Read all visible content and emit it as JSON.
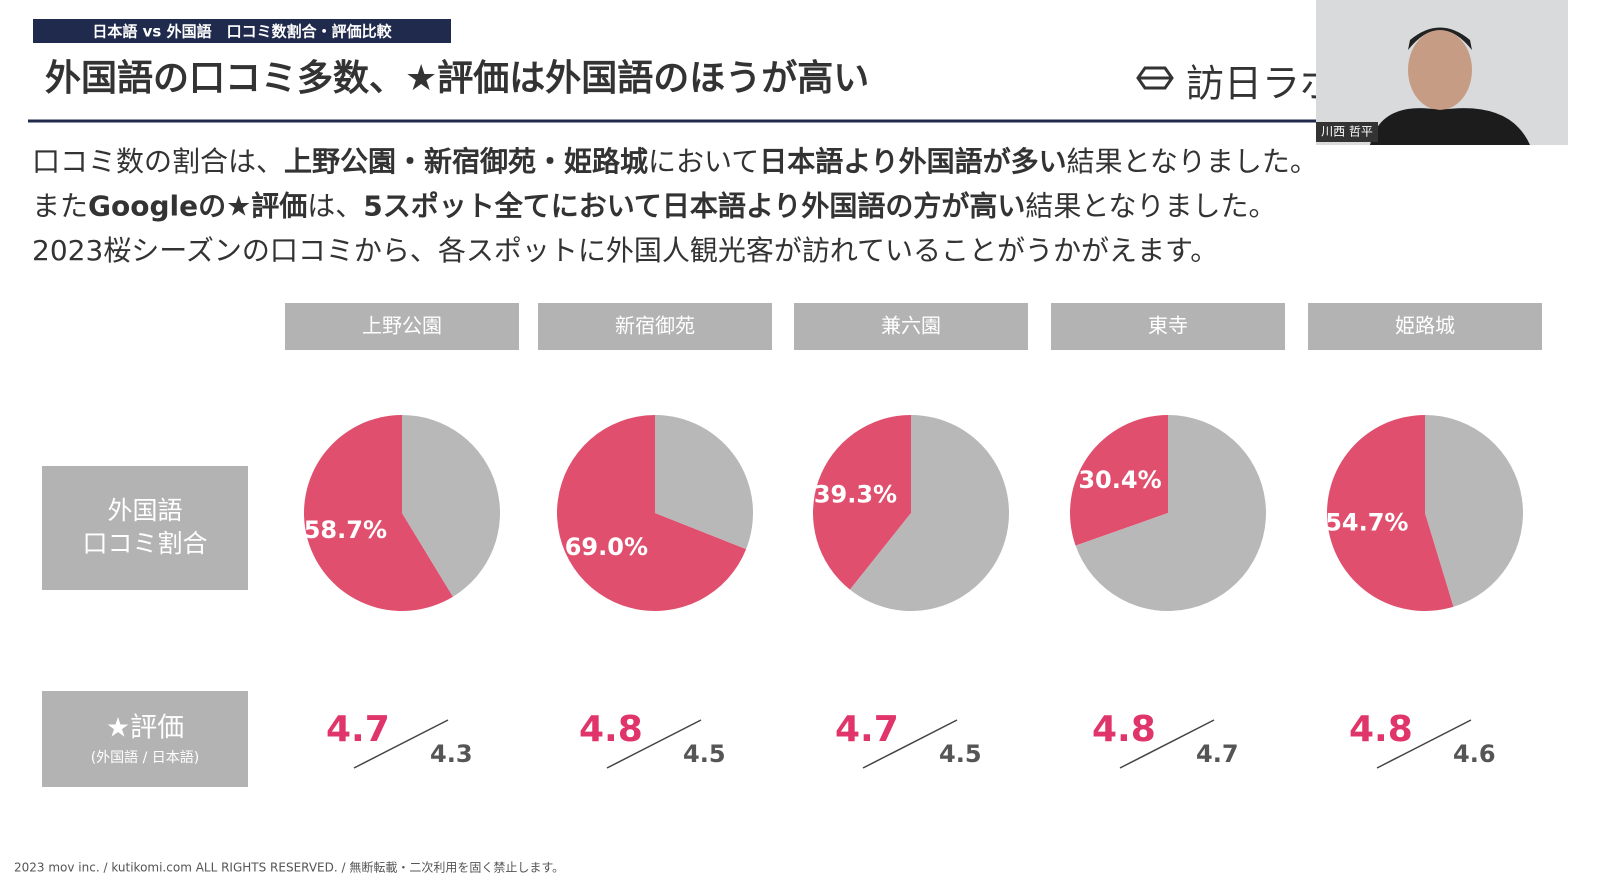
{
  "header": {
    "tag": "日本語 vs 外国語　口コミ数割合・評価比較",
    "title": "外国語の口コミ多数、★評価は外国語のほうが高い",
    "logo": "訪日ラボ"
  },
  "body": {
    "lines": [
      [
        {
          "text": "口コミ数の割合は、",
          "bold": false
        },
        {
          "text": "上野公園・新宿御苑・姫路城",
          "bold": true
        },
        {
          "text": "において",
          "bold": false
        },
        {
          "text": "日本語より外国語が多い",
          "bold": true
        },
        {
          "text": "結果となりました。",
          "bold": false
        }
      ],
      [
        {
          "text": "また",
          "bold": false
        },
        {
          "text": "Googleの★評価",
          "bold": true
        },
        {
          "text": "は、",
          "bold": false
        },
        {
          "text": "5スポット全てにおいて日本語より外国語の方が高い",
          "bold": true
        },
        {
          "text": "結果となりました。",
          "bold": false
        }
      ],
      [
        {
          "text": "2023桜シーズンの口コミから、各スポットに外国人観光客が訪れていることがうかがえます。",
          "bold": false
        }
      ]
    ]
  },
  "row_labels": {
    "share": [
      "外国語",
      "口コミ割合"
    ],
    "rating": [
      "★評価",
      "(外国語 / 日本語)"
    ]
  },
  "chart_data": [
    {
      "type": "pie",
      "title": "上野公園",
      "values": [
        58.7,
        41.3
      ],
      "value_labels": [
        "58.7%",
        null
      ],
      "colors": [
        "#e0506e",
        "#b8b8b8"
      ],
      "rating_foreign": "4.7",
      "rating_japanese": "4.3"
    },
    {
      "type": "pie",
      "title": "新宿御苑",
      "values": [
        69.0,
        31.0
      ],
      "value_labels": [
        "69.0%",
        null
      ],
      "colors": [
        "#e0506e",
        "#b8b8b8"
      ],
      "rating_foreign": "4.8",
      "rating_japanese": "4.5"
    },
    {
      "type": "pie",
      "title": "兼六園",
      "values": [
        39.3,
        60.7
      ],
      "value_labels": [
        "39.3%",
        null
      ],
      "colors": [
        "#e0506e",
        "#b8b8b8"
      ],
      "rating_foreign": "4.7",
      "rating_japanese": "4.5"
    },
    {
      "type": "pie",
      "title": "東寺",
      "values": [
        30.4,
        69.6
      ],
      "value_labels": [
        "30.4%",
        null
      ],
      "colors": [
        "#e0506e",
        "#b8b8b8"
      ],
      "rating_foreign": "4.8",
      "rating_japanese": "4.7"
    },
    {
      "type": "pie",
      "title": "姫路城",
      "values": [
        54.7,
        45.3
      ],
      "value_labels": [
        "54.7%",
        null
      ],
      "colors": [
        "#e0506e",
        "#b8b8b8"
      ],
      "rating_foreign": "4.8",
      "rating_japanese": "4.6"
    }
  ],
  "footer": "2023 mov inc. / kutikomi.com ALL RIGHTS RESERVED. / 無断転載・二次利用を固く禁止します。",
  "webcam": {
    "name": "川西 哲平"
  }
}
